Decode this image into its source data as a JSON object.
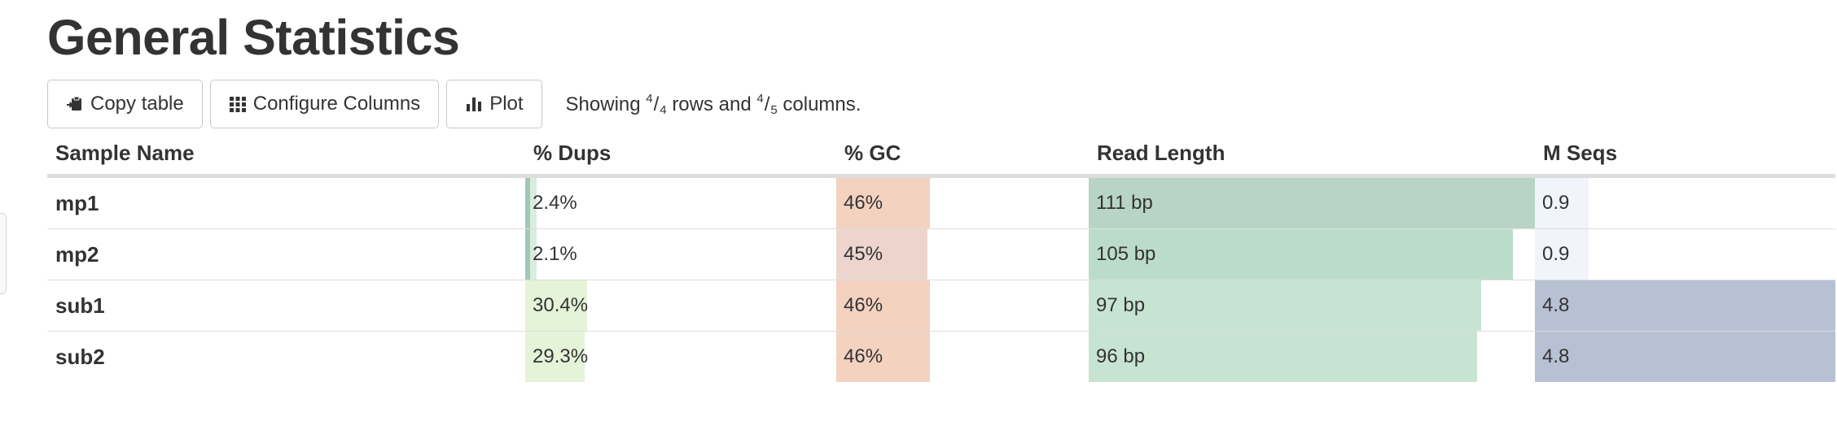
{
  "title": "General Statistics",
  "toolbar": {
    "copy_label": "Copy table",
    "configure_label": "Configure Columns",
    "plot_label": "Plot",
    "showing_prefix": "Showing",
    "rows_shown": "4",
    "rows_total": "4",
    "rows_word": "rows and",
    "cols_shown": "4",
    "cols_total": "5",
    "cols_word": "columns."
  },
  "columns": [
    "Sample Name",
    "% Dups",
    "% GC",
    "Read Length",
    "M Seqs"
  ],
  "rows": [
    {
      "sample": "mp1",
      "dups": {
        "text": "2.4%",
        "value": 2.4,
        "fill": 0.02,
        "color": "#d9ecdf",
        "edge": "#9fc9b5"
      },
      "gc": {
        "text": "46%",
        "value": 46,
        "fill": 0.37,
        "color": "#f3d2c0"
      },
      "readlen": {
        "text": "111 bp",
        "value": 111,
        "fill": 1.0,
        "color": "#b7d4c7"
      },
      "mseqs": {
        "text": "0.9",
        "value": 0.9,
        "fill": 0.18,
        "color": "#f1f4fa"
      }
    },
    {
      "sample": "mp2",
      "dups": {
        "text": "2.1%",
        "value": 2.1,
        "fill": 0.02,
        "color": "#d9ecdf",
        "edge": "#9fc9b5"
      },
      "gc": {
        "text": "45%",
        "value": 45,
        "fill": 0.36,
        "color": "#edd5ce"
      },
      "readlen": {
        "text": "105 bp",
        "value": 105,
        "fill": 0.95,
        "color": "#bcdcca"
      },
      "mseqs": {
        "text": "0.9",
        "value": 0.9,
        "fill": 0.18,
        "color": "#f1f4fa"
      }
    },
    {
      "sample": "sub1",
      "dups": {
        "text": "30.4%",
        "value": 30.4,
        "fill": 0.2,
        "color": "#e5f3d8",
        "edge": ""
      },
      "gc": {
        "text": "46%",
        "value": 46,
        "fill": 0.37,
        "color": "#f3d2c0"
      },
      "readlen": {
        "text": "97 bp",
        "value": 97,
        "fill": 0.88,
        "color": "#c7e4d3"
      },
      "mseqs": {
        "text": "4.8",
        "value": 4.8,
        "fill": 1.0,
        "color": "#b7c1d3"
      }
    },
    {
      "sample": "sub2",
      "dups": {
        "text": "29.3%",
        "value": 29.3,
        "fill": 0.19,
        "color": "#e5f3d8",
        "edge": ""
      },
      "gc": {
        "text": "46%",
        "value": 46,
        "fill": 0.37,
        "color": "#f3d2c0"
      },
      "readlen": {
        "text": "96 bp",
        "value": 96,
        "fill": 0.87,
        "color": "#c7e4d3"
      },
      "mseqs": {
        "text": "4.8",
        "value": 4.8,
        "fill": 1.0,
        "color": "#b7c1d3"
      }
    }
  ]
}
